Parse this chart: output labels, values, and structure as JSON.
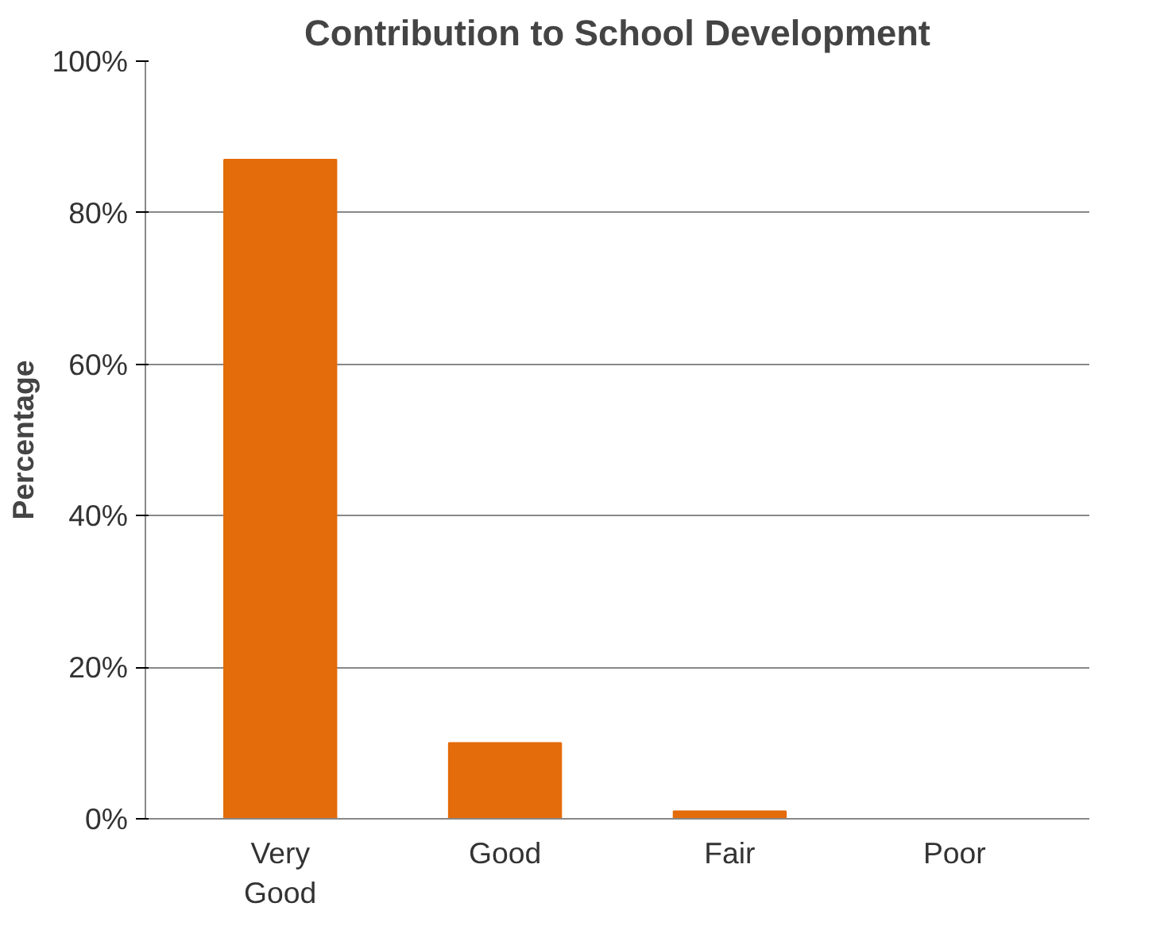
{
  "chart_data": {
    "type": "bar",
    "title": "Contribution to School Development",
    "ylabel": "Percentage",
    "categories": [
      "Very\nGood",
      "Good",
      "Fair",
      "Poor"
    ],
    "values": [
      87,
      10,
      1,
      0
    ],
    "color": "#e46c0a",
    "ylim": [
      0,
      100
    ],
    "yticks": [
      {
        "value": 0,
        "label": "0%"
      },
      {
        "value": 20,
        "label": "20%"
      },
      {
        "value": 40,
        "label": "40%"
      },
      {
        "value": 60,
        "label": "60%"
      },
      {
        "value": 80,
        "label": "80%"
      },
      {
        "value": 100,
        "label": "100%"
      }
    ],
    "grid": "y"
  }
}
